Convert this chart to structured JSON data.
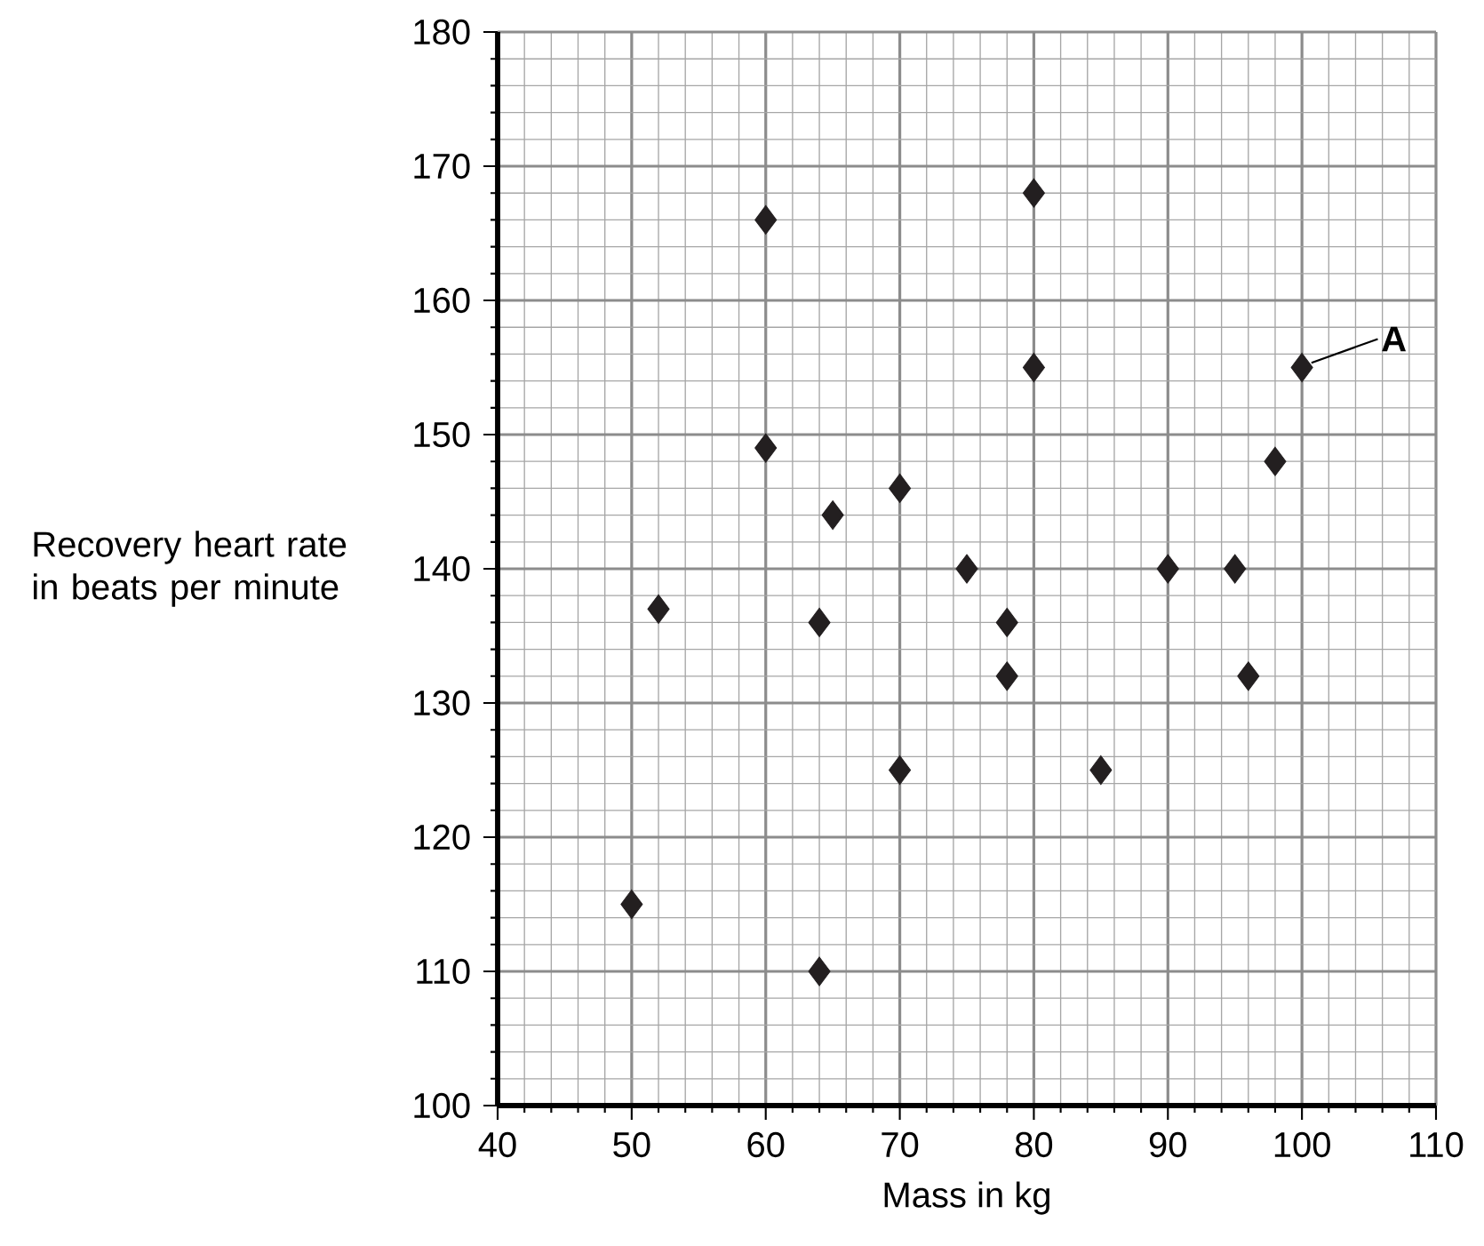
{
  "chart_data": {
    "type": "scatter",
    "xlabel": "Mass in kg",
    "ylabel": "Recovery heart rate in beats per minute",
    "x": [
      50,
      52,
      60,
      60,
      64,
      64,
      65,
      70,
      70,
      75,
      78,
      78,
      80,
      80,
      85,
      90,
      95,
      96,
      98,
      100
    ],
    "values": [
      115,
      137,
      166,
      149,
      136,
      110,
      144,
      146,
      125,
      140,
      136,
      132,
      168,
      155,
      125,
      140,
      140,
      132,
      148,
      155
    ],
    "color": "#231f20",
    "marker": "diamond",
    "xlim": [
      40,
      110
    ],
    "ylim": [
      100,
      180
    ],
    "xticks": [
      40,
      50,
      60,
      70,
      80,
      90,
      100,
      110
    ],
    "yticks": [
      100,
      110,
      120,
      130,
      140,
      150,
      160,
      170,
      180
    ],
    "grid": true,
    "annotations": [
      {
        "text": "A",
        "x": 100,
        "y": 155
      }
    ]
  }
}
